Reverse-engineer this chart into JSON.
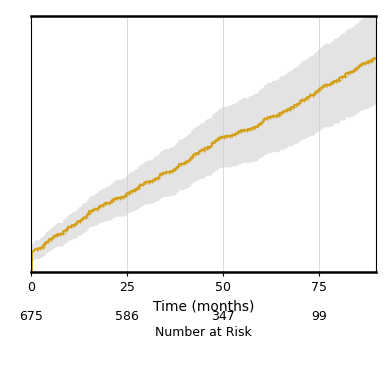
{
  "xlabel": "Time (months)",
  "xlim": [
    0,
    90
  ],
  "ylim": [
    0,
    0.72
  ],
  "xticks": [
    0,
    25,
    50,
    75
  ],
  "yticks": [],
  "line_color": "#D4A017",
  "ci_color": "#CCCCCC",
  "ci_alpha": 0.55,
  "background_color": "#ffffff",
  "grid_color": "#CCCCCC",
  "number_at_risk": [
    675,
    586,
    347,
    99
  ],
  "risk_times": [
    0,
    25,
    50,
    75
  ],
  "risk_label": "Number at Risk",
  "figure_size": [
    3.88,
    3.88
  ],
  "dpi": 100
}
